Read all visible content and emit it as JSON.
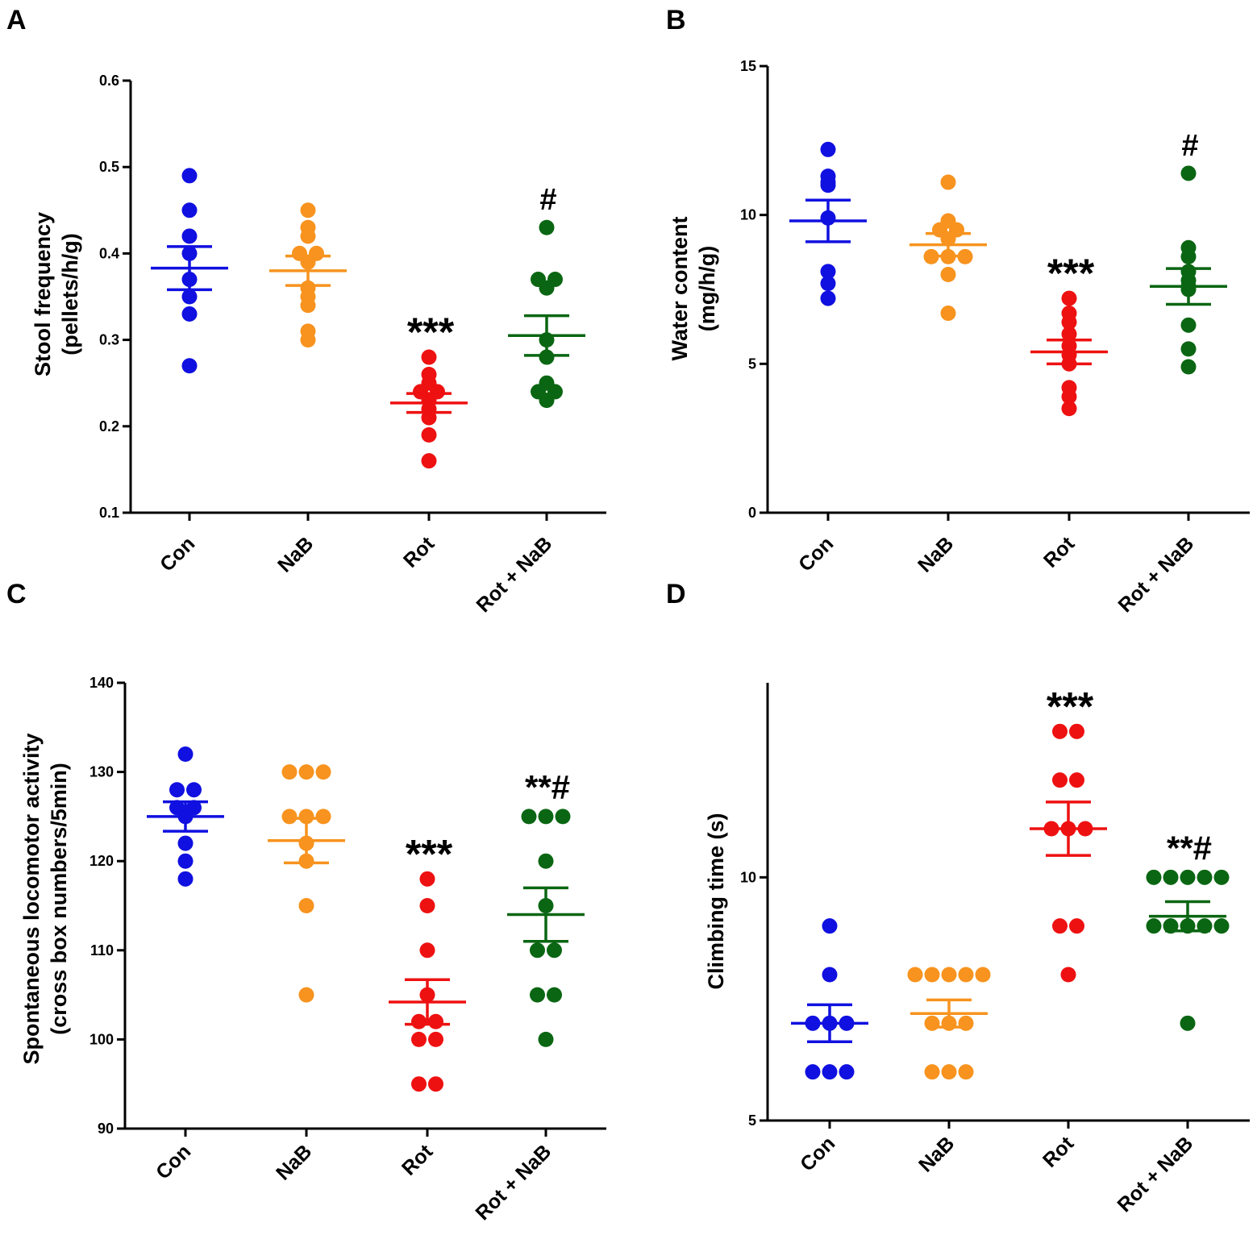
{
  "panels": [
    {
      "letter": "A",
      "ylabel": [
        "Stool frequency",
        "(pellets/h/g)"
      ],
      "yticks": [
        "0.1",
        "0.2",
        "0.3",
        "0.4",
        "0.5",
        "0.6"
      ]
    },
    {
      "letter": "B",
      "ylabel": [
        "Water content",
        "(mg/h/g)"
      ],
      "yticks": [
        "0",
        "5",
        "10",
        "15"
      ]
    },
    {
      "letter": "C",
      "ylabel": [
        "Spontaneous locomotor activity",
        "(cross box numbers/5min)"
      ],
      "yticks": [
        "90",
        "100",
        "110",
        "120",
        "130",
        "140"
      ]
    },
    {
      "letter": "D",
      "ylabel": [
        "Climbing time (s)"
      ],
      "yticks": [
        "5",
        "10"
      ]
    }
  ],
  "chart_data": [
    {
      "type": "scatter",
      "title": "A",
      "ylabel": "Stool frequency (pellets/h/g)",
      "ylim": [
        0.1,
        0.6
      ],
      "categories": [
        "Con",
        "NaB",
        "Rot",
        "Rot + NaB"
      ],
      "colors": [
        "#1010e0",
        "#f7931e",
        "#ee1111",
        "#0a6612"
      ],
      "series": [
        {
          "name": "Con",
          "values": [
            0.49,
            0.45,
            0.42,
            0.4,
            0.37,
            0.35,
            0.33,
            0.27
          ],
          "mean": 0.383,
          "sem": 0.025,
          "sig": ""
        },
        {
          "name": "NaB",
          "values": [
            0.45,
            0.43,
            0.42,
            0.4,
            0.4,
            0.39,
            0.36,
            0.35,
            0.34,
            0.31,
            0.3
          ],
          "mean": 0.38,
          "sem": 0.017,
          "sig": ""
        },
        {
          "name": "Rot",
          "values": [
            0.28,
            0.26,
            0.25,
            0.24,
            0.24,
            0.23,
            0.22,
            0.21,
            0.19,
            0.16
          ],
          "mean": 0.227,
          "sem": 0.011,
          "sig": "***"
        },
        {
          "name": "Rot + NaB",
          "values": [
            0.43,
            0.37,
            0.37,
            0.36,
            0.3,
            0.28,
            0.25,
            0.24,
            0.24,
            0.23
          ],
          "mean": 0.305,
          "sem": 0.023,
          "sig": "#"
        }
      ]
    },
    {
      "type": "scatter",
      "title": "B",
      "ylabel": "Water content (mg/h/g)",
      "ylim": [
        0,
        15
      ],
      "categories": [
        "Con",
        "NaB",
        "Rot",
        "Rot + NaB"
      ],
      "colors": [
        "#1010e0",
        "#f7931e",
        "#ee1111",
        "#0a6612"
      ],
      "series": [
        {
          "name": "Con",
          "values": [
            12.2,
            11.3,
            11.1,
            11.0,
            9.9,
            8.1,
            7.7,
            7.2
          ],
          "mean": 9.8,
          "sem": 0.7,
          "sig": ""
        },
        {
          "name": "NaB",
          "values": [
            11.1,
            9.8,
            9.5,
            9.5,
            9.2,
            8.6,
            8.6,
            8.6,
            8.0,
            6.7
          ],
          "mean": 9.0,
          "sem": 0.38,
          "sig": ""
        },
        {
          "name": "Rot",
          "values": [
            7.2,
            6.7,
            6.4,
            6.0,
            5.6,
            5.3,
            5.0,
            4.2,
            3.9,
            3.5
          ],
          "mean": 5.4,
          "sem": 0.4,
          "sig": "***"
        },
        {
          "name": "Rot + NaB",
          "values": [
            11.4,
            8.9,
            8.6,
            8.1,
            7.8,
            7.6,
            7.5,
            6.3,
            5.5,
            4.9
          ],
          "mean": 7.6,
          "sem": 0.6,
          "sig": "#"
        }
      ]
    },
    {
      "type": "scatter",
      "title": "C",
      "ylabel": "Spontaneous locomotor activity (cross box numbers/5min)",
      "ylim": [
        90,
        140
      ],
      "categories": [
        "Con",
        "NaB",
        "Rot",
        "Rot + NaB"
      ],
      "colors": [
        "#1010e0",
        "#f7931e",
        "#ee1111",
        "#0a6612"
      ],
      "series": [
        {
          "name": "Con",
          "values": [
            132,
            128,
            128,
            126,
            126,
            125,
            122,
            120,
            118
          ],
          "mean": 125,
          "sem": 1.65,
          "sig": ""
        },
        {
          "name": "NaB",
          "values": [
            130,
            130,
            130,
            125,
            125,
            125,
            122,
            120,
            115,
            105
          ],
          "mean": 122.3,
          "sem": 2.5,
          "sig": ""
        },
        {
          "name": "Rot",
          "values": [
            118,
            115,
            110,
            105,
            102,
            102,
            100,
            100,
            95,
            95
          ],
          "mean": 104.2,
          "sem": 2.5,
          "sig": "***"
        },
        {
          "name": "Rot + NaB",
          "values": [
            125,
            125,
            125,
            120,
            115,
            110,
            110,
            105,
            105,
            100
          ],
          "mean": 114,
          "sem": 3,
          "sig": "**#"
        }
      ]
    },
    {
      "type": "scatter",
      "title": "D",
      "ylabel": "Climbing time (s)",
      "ylim": [
        5,
        14
      ],
      "categories": [
        "Con",
        "NaB",
        "Rot",
        "Rot + NaB"
      ],
      "colors": [
        "#1010e0",
        "#f7931e",
        "#ee1111",
        "#0a6612"
      ],
      "series": [
        {
          "name": "Con",
          "values": [
            9,
            8,
            7,
            7,
            7,
            6,
            6,
            6
          ],
          "mean": 7,
          "sem": 0.38,
          "sig": ""
        },
        {
          "name": "NaB",
          "values": [
            8,
            8,
            8,
            8,
            8,
            7,
            7,
            7,
            6,
            6,
            6
          ],
          "mean": 7.2,
          "sem": 0.28,
          "sig": ""
        },
        {
          "name": "Rot",
          "values": [
            13,
            13,
            12,
            12,
            11,
            11,
            11,
            9,
            9,
            8
          ],
          "mean": 11,
          "sem": 0.55,
          "sig": "***"
        },
        {
          "name": "Rot + NaB",
          "values": [
            10,
            10,
            10,
            10,
            10,
            9,
            9,
            9,
            9,
            9,
            7
          ],
          "mean": 9.2,
          "sem": 0.3,
          "sig": "**#"
        }
      ]
    }
  ]
}
